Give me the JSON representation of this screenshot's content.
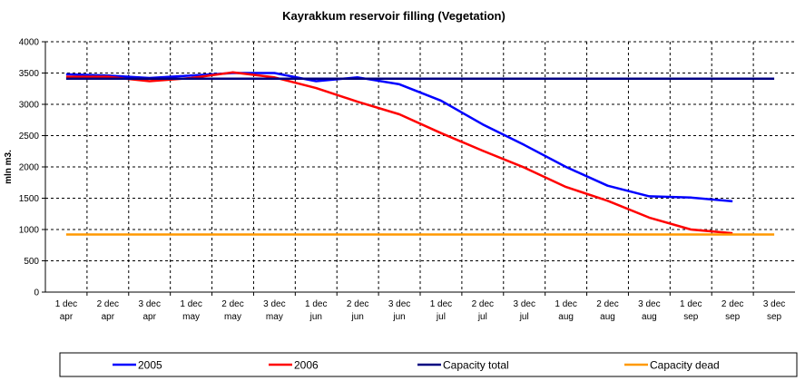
{
  "chart_data": {
    "type": "line",
    "title": "Kayrakkum reservoir filling  (Vegetation)",
    "xlabel": "",
    "ylabel": "mln m3.",
    "ylim": [
      0,
      4000
    ],
    "yticks": [
      0,
      500,
      1000,
      1500,
      2000,
      2500,
      3000,
      3500,
      4000
    ],
    "categories": [
      [
        "1 dec",
        "apr"
      ],
      [
        "2 dec",
        "apr"
      ],
      [
        "3 dec",
        "apr"
      ],
      [
        "1 dec",
        "may"
      ],
      [
        "2 dec",
        "may"
      ],
      [
        "3 dec",
        "may"
      ],
      [
        "1 dec",
        "jun"
      ],
      [
        "2 dec",
        "jun"
      ],
      [
        "3 dec",
        "jun"
      ],
      [
        "1 dec",
        "jul"
      ],
      [
        "2 dec",
        "jul"
      ],
      [
        "3 dec",
        "jul"
      ],
      [
        "1 dec",
        "aug"
      ],
      [
        "2 dec",
        "aug"
      ],
      [
        "3 dec",
        "aug"
      ],
      [
        "1 dec",
        "sep"
      ],
      [
        "2 dec",
        "sep"
      ],
      [
        "3 dec",
        "sep"
      ]
    ],
    "grid": true,
    "legend_position": "bottom",
    "series": [
      {
        "name": "2005",
        "color": "#0000ff",
        "values": [
          3480,
          3460,
          3420,
          3460,
          3500,
          3500,
          3370,
          3430,
          3320,
          3060,
          2680,
          2350,
          2000,
          1700,
          1530,
          1510,
          1450,
          null
        ]
      },
      {
        "name": "2006",
        "color": "#ff0000",
        "values": [
          3440,
          3440,
          3370,
          3420,
          3510,
          3430,
          3260,
          3040,
          2840,
          2540,
          2260,
          1990,
          1680,
          1460,
          1190,
          1000,
          940,
          null
        ]
      },
      {
        "name": "Capacity total",
        "color": "#000080",
        "values": [
          3410,
          3410,
          3410,
          3410,
          3410,
          3410,
          3410,
          3410,
          3410,
          3410,
          3410,
          3410,
          3410,
          3410,
          3410,
          3410,
          3410,
          3410
        ]
      },
      {
        "name": "Capacity dead",
        "color": "#ff9900",
        "values": [
          920,
          920,
          920,
          920,
          920,
          920,
          920,
          920,
          920,
          920,
          920,
          920,
          920,
          920,
          920,
          920,
          920,
          920
        ]
      }
    ]
  }
}
